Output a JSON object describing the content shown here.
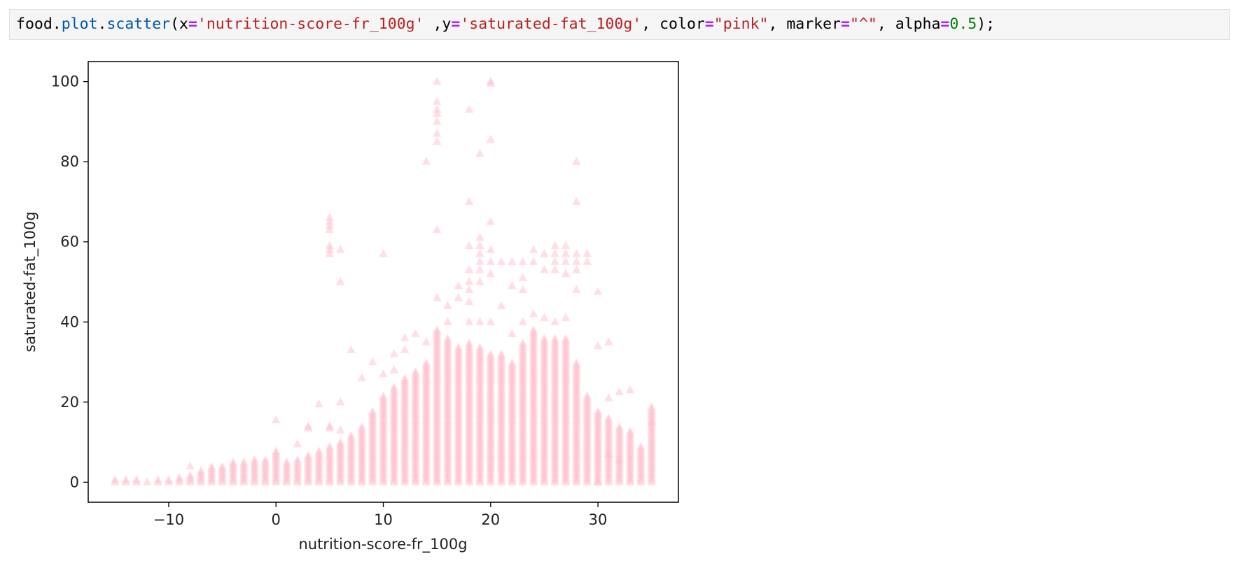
{
  "code_cell": {
    "tokens": [
      {
        "text": "food",
        "kind": "var"
      },
      {
        "text": ".",
        "kind": "var"
      },
      {
        "text": "plot",
        "kind": "attr"
      },
      {
        "text": ".",
        "kind": "var"
      },
      {
        "text": "scatter",
        "kind": "attr"
      },
      {
        "text": "(x",
        "kind": "var"
      },
      {
        "text": "=",
        "kind": "op"
      },
      {
        "text": "'nutrition-score-fr_100g'",
        "kind": "str"
      },
      {
        "text": " ,y",
        "kind": "var"
      },
      {
        "text": "=",
        "kind": "op"
      },
      {
        "text": "'saturated-fat_100g'",
        "kind": "str"
      },
      {
        "text": ", color",
        "kind": "var"
      },
      {
        "text": "=",
        "kind": "op"
      },
      {
        "text": "\"pink\"",
        "kind": "str"
      },
      {
        "text": ", marker",
        "kind": "var"
      },
      {
        "text": "=",
        "kind": "op"
      },
      {
        "text": "\"^\"",
        "kind": "str"
      },
      {
        "text": ", alpha",
        "kind": "var"
      },
      {
        "text": "=",
        "kind": "op"
      },
      {
        "text": "0.5",
        "kind": "num"
      },
      {
        "text": ");",
        "kind": "var"
      }
    ]
  },
  "chart_data": {
    "type": "scatter",
    "marker": "triangle-up",
    "color": "#ffc0cb",
    "alpha": 0.5,
    "xlabel": "nutrition-score-fr_100g",
    "ylabel": "saturated-fat_100g",
    "xlim": [
      -17.5,
      37.5
    ],
    "ylim": [
      -5,
      105
    ],
    "xticks": [
      -10,
      0,
      10,
      20,
      30
    ],
    "xtick_labels": [
      "−10",
      "0",
      "10",
      "20",
      "30"
    ],
    "yticks": [
      0,
      20,
      40,
      60,
      80,
      100
    ],
    "ytick_labels": [
      "0",
      "20",
      "40",
      "60",
      "80",
      "100"
    ],
    "grid": false,
    "columns": [
      {
        "x": -15,
        "ymax": 1,
        "extra": []
      },
      {
        "x": -14,
        "ymax": 1,
        "extra": []
      },
      {
        "x": -13,
        "ymax": 1,
        "extra": []
      },
      {
        "x": -12,
        "ymax": 0.5,
        "extra": []
      },
      {
        "x": -11,
        "ymax": 1,
        "extra": []
      },
      {
        "x": -10,
        "ymax": 1,
        "extra": []
      },
      {
        "x": -9,
        "ymax": 1.5,
        "extra": []
      },
      {
        "x": -8,
        "ymax": 2,
        "extra": [
          4
        ]
      },
      {
        "x": -7,
        "ymax": 3,
        "extra": []
      },
      {
        "x": -6,
        "ymax": 4,
        "extra": []
      },
      {
        "x": -5,
        "ymax": 4,
        "extra": []
      },
      {
        "x": -4,
        "ymax": 5,
        "extra": []
      },
      {
        "x": -3,
        "ymax": 5,
        "extra": []
      },
      {
        "x": -2,
        "ymax": 6,
        "extra": []
      },
      {
        "x": -1,
        "ymax": 6,
        "extra": []
      },
      {
        "x": 0,
        "ymax": 8,
        "extra": [
          15.5
        ]
      },
      {
        "x": 1,
        "ymax": 5,
        "extra": []
      },
      {
        "x": 2,
        "ymax": 6,
        "extra": [
          9.5
        ]
      },
      {
        "x": 3,
        "ymax": 7,
        "extra": [
          14,
          13.5
        ]
      },
      {
        "x": 4,
        "ymax": 8,
        "extra": [
          19.5
        ]
      },
      {
        "x": 5,
        "ymax": 9,
        "extra": [
          14,
          13.5,
          57,
          58,
          59,
          63,
          64,
          65,
          66
        ]
      },
      {
        "x": 6,
        "ymax": 10,
        "extra": [
          13,
          20,
          50,
          58
        ]
      },
      {
        "x": 7,
        "ymax": 12,
        "extra": [
          33
        ]
      },
      {
        "x": 8,
        "ymax": 14,
        "extra": [
          26
        ]
      },
      {
        "x": 9,
        "ymax": 18,
        "extra": [
          30
        ]
      },
      {
        "x": 10,
        "ymax": 22,
        "extra": [
          27,
          57
        ]
      },
      {
        "x": 11,
        "ymax": 24,
        "extra": [
          32,
          28
        ]
      },
      {
        "x": 12,
        "ymax": 26,
        "extra": [
          36,
          33
        ]
      },
      {
        "x": 13,
        "ymax": 28,
        "extra": [
          37
        ]
      },
      {
        "x": 14,
        "ymax": 30,
        "extra": [
          35,
          80
        ]
      },
      {
        "x": 15,
        "ymax": 38,
        "extra": [
          46,
          63,
          85,
          87,
          90,
          92,
          93,
          95,
          100
        ]
      },
      {
        "x": 16,
        "ymax": 36,
        "extra": [
          44,
          40
        ]
      },
      {
        "x": 17,
        "ymax": 34,
        "extra": [
          46,
          49
        ]
      },
      {
        "x": 18,
        "ymax": 35,
        "extra": [
          40,
          45,
          48,
          50,
          53,
          59,
          70,
          93
        ]
      },
      {
        "x": 19,
        "ymax": 34,
        "extra": [
          40,
          50,
          53,
          55,
          57,
          59,
          61,
          82
        ]
      },
      {
        "x": 20,
        "ymax": 32,
        "extra": [
          40,
          52,
          55,
          58,
          65,
          85.5,
          99.5,
          100
        ]
      },
      {
        "x": 21,
        "ymax": 32,
        "extra": [
          44,
          55
        ]
      },
      {
        "x": 22,
        "ymax": 30,
        "extra": [
          37,
          49,
          55
        ]
      },
      {
        "x": 23,
        "ymax": 35,
        "extra": [
          40,
          48,
          51,
          55
        ]
      },
      {
        "x": 24,
        "ymax": 38,
        "extra": [
          42,
          55,
          58
        ]
      },
      {
        "x": 25,
        "ymax": 36,
        "extra": [
          41,
          53,
          57
        ]
      },
      {
        "x": 26,
        "ymax": 36,
        "extra": [
          40,
          53,
          55,
          57,
          59
        ]
      },
      {
        "x": 27,
        "ymax": 36,
        "extra": [
          41,
          52,
          55,
          57,
          59
        ]
      },
      {
        "x": 28,
        "ymax": 30,
        "extra": [
          48,
          53,
          55,
          57,
          70,
          80
        ]
      },
      {
        "x": 29,
        "ymax": 22,
        "extra": [
          55,
          57
        ]
      },
      {
        "x": 30,
        "ymax": 18,
        "extra": [
          0,
          34,
          47.5
        ]
      },
      {
        "x": 31,
        "ymax": 16,
        "extra": [
          7,
          21,
          35
        ]
      },
      {
        "x": 32,
        "ymax": 14,
        "extra": [
          5.5,
          22.5
        ]
      },
      {
        "x": 33,
        "ymax": 13,
        "extra": [
          23
        ]
      },
      {
        "x": 34,
        "ymax": 9,
        "extra": []
      },
      {
        "x": 35,
        "ymax": 19,
        "extra": [
          15
        ]
      }
    ]
  }
}
